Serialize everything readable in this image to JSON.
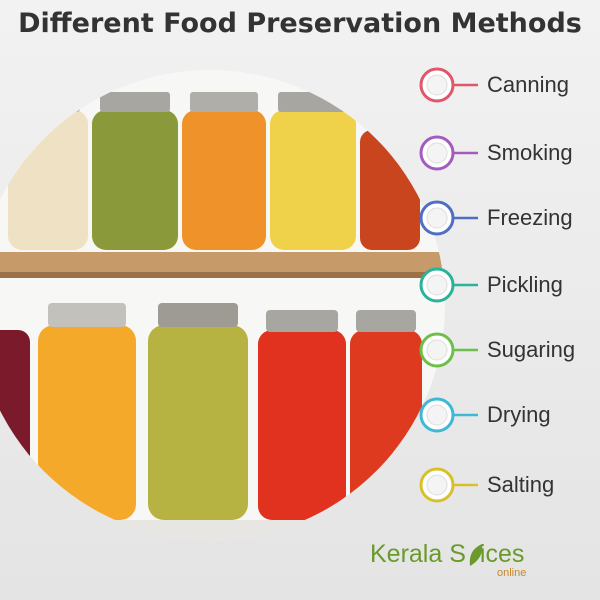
{
  "title": "Different Food Preservation Methods",
  "methods": [
    {
      "label": "Canning",
      "color": "#e0566a"
    },
    {
      "label": "Smoking",
      "color": "#a35bc0"
    },
    {
      "label": "Freezing",
      "color": "#4f6fc4"
    },
    {
      "label": "Pickling",
      "color": "#2bb39a"
    },
    {
      "label": "Sugaring",
      "color": "#6cc04a"
    },
    {
      "label": "Drying",
      "color": "#3fb8d6"
    },
    {
      "label": "Salting",
      "color": "#d8c02c"
    }
  ],
  "brand": {
    "part1": "Kerala S",
    "part2": "ices",
    "tagline": "online"
  }
}
